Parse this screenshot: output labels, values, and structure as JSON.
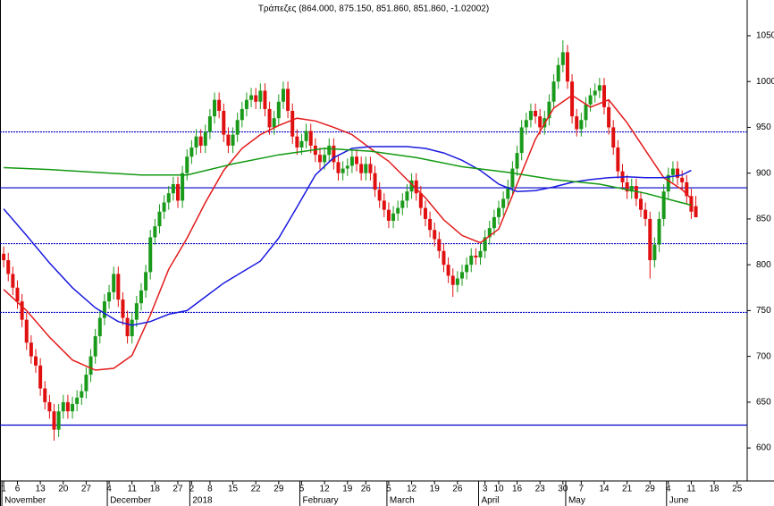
{
  "chart_data": {
    "type": "candlestick",
    "title": "Τράπεζες (864.000, 875.150, 851.860, 851.860, -1.02002)",
    "xlim": [
      -0.8,
      162.2
    ],
    "ylim": [
      564,
      1089
    ],
    "yticks": [
      600,
      650,
      700,
      750,
      800,
      850,
      900,
      950,
      1000,
      1050
    ],
    "xticks": [
      {
        "value": 0,
        "label": "1"
      },
      {
        "value": 3,
        "label": "6"
      },
      {
        "value": 8,
        "label": "13"
      },
      {
        "value": 13,
        "label": "20"
      },
      {
        "value": 18,
        "label": "27"
      },
      {
        "value": 23,
        "label": "4"
      },
      {
        "value": 28,
        "label": "11"
      },
      {
        "value": 33,
        "label": "18"
      },
      {
        "value": 38,
        "label": "27"
      },
      {
        "value": 41,
        "label": "2"
      },
      {
        "value": 45,
        "label": "8"
      },
      {
        "value": 50,
        "label": "15"
      },
      {
        "value": 55,
        "label": "22"
      },
      {
        "value": 60,
        "label": "29"
      },
      {
        "value": 65,
        "label": "5"
      },
      {
        "value": 70,
        "label": "12"
      },
      {
        "value": 75,
        "label": "19"
      },
      {
        "value": 79,
        "label": "26"
      },
      {
        "value": 84,
        "label": "5"
      },
      {
        "value": 89,
        "label": "12"
      },
      {
        "value": 94,
        "label": "19"
      },
      {
        "value": 99,
        "label": "26"
      },
      {
        "value": 105,
        "label": "3"
      },
      {
        "value": 108,
        "label": "10"
      },
      {
        "value": 112,
        "label": "16"
      },
      {
        "value": 117,
        "label": "23"
      },
      {
        "value": 122,
        "label": "30"
      },
      {
        "value": 126,
        "label": "7"
      },
      {
        "value": 131,
        "label": "14"
      },
      {
        "value": 136,
        "label": "21"
      },
      {
        "value": 141,
        "label": "29"
      },
      {
        "value": 145,
        "label": "4"
      },
      {
        "value": 150,
        "label": "11"
      },
      {
        "value": 155,
        "label": "18"
      },
      {
        "value": 160,
        "label": "25"
      }
    ],
    "month_ticks": [
      {
        "value": 0,
        "label": "November"
      },
      {
        "value": 23,
        "label": "December"
      },
      {
        "value": 41,
        "label": "2018"
      },
      {
        "value": 65,
        "label": "February"
      },
      {
        "value": 84,
        "label": "March"
      },
      {
        "value": 104,
        "label": "April"
      },
      {
        "value": 123,
        "label": "May"
      },
      {
        "value": 145,
        "label": "June"
      }
    ],
    "up_color": "#1a9a1a",
    "down_color": "#e01010",
    "open": [
      812,
      805,
      790,
      775,
      760,
      740,
      715,
      700,
      690,
      665,
      650,
      640,
      620,
      640,
      650,
      640,
      648,
      655,
      662,
      680,
      700,
      722,
      742,
      760,
      770,
      790,
      762,
      742,
      722,
      740,
      758,
      772,
      792,
      830,
      842,
      858,
      868,
      878,
      888,
      870,
      900,
      918,
      928,
      940,
      930,
      945,
      962,
      980,
      968,
      942,
      930,
      942,
      958,
      970,
      980,
      985,
      978,
      990,
      970,
      950,
      960,
      978,
      992,
      968,
      940,
      928,
      935,
      946,
      930,
      920,
      912,
      920,
      930,
      912,
      900,
      905,
      908,
      918,
      910,
      900,
      910,
      900,
      882,
      870,
      860,
      848,
      856,
      862,
      870,
      880,
      892,
      878,
      862,
      850,
      838,
      828,
      815,
      800,
      788,
      778,
      785,
      792,
      800,
      810,
      808,
      815,
      830,
      840,
      852,
      862,
      872,
      885,
      905,
      922,
      950,
      958,
      968,
      962,
      950,
      960,
      978,
      1000,
      1018,
      1032,
      1000,
      962,
      948,
      958,
      975,
      985,
      990,
      996,
      972,
      950,
      928,
      902,
      890,
      880,
      886,
      872,
      860,
      850,
      805,
      822,
      850,
      880,
      898,
      905,
      895,
      890,
      875,
      864
    ],
    "high": [
      820,
      813,
      798,
      783,
      768,
      748,
      723,
      708,
      698,
      673,
      658,
      648,
      648,
      658,
      658,
      656,
      663,
      670,
      688,
      708,
      730,
      750,
      768,
      778,
      798,
      798,
      770,
      750,
      748,
      766,
      780,
      800,
      838,
      850,
      866,
      876,
      886,
      896,
      896,
      908,
      926,
      936,
      948,
      948,
      953,
      970,
      988,
      988,
      976,
      950,
      950,
      966,
      978,
      988,
      993,
      993,
      998,
      998,
      978,
      968,
      986,
      1000,
      1000,
      976,
      948,
      943,
      954,
      954,
      938,
      928,
      928,
      938,
      938,
      920,
      913,
      916,
      926,
      926,
      918,
      918,
      918,
      908,
      890,
      878,
      868,
      864,
      870,
      878,
      888,
      900,
      900,
      886,
      870,
      858,
      846,
      836,
      823,
      808,
      796,
      793,
      800,
      808,
      818,
      818,
      823,
      838,
      848,
      860,
      870,
      880,
      893,
      913,
      930,
      958,
      966,
      976,
      976,
      970,
      968,
      986,
      1008,
      1026,
      1045,
      1040,
      1008,
      970,
      966,
      983,
      993,
      998,
      1004,
      1004,
      980,
      958,
      936,
      910,
      898,
      894,
      894,
      880,
      868,
      858,
      830,
      858,
      888,
      906,
      913,
      913,
      903,
      898,
      883,
      875.15
    ],
    "low": [
      797,
      782,
      767,
      752,
      732,
      707,
      692,
      682,
      657,
      642,
      632,
      608,
      612,
      632,
      632,
      632,
      640,
      647,
      654,
      672,
      692,
      714,
      734,
      752,
      762,
      754,
      734,
      714,
      714,
      732,
      750,
      764,
      784,
      822,
      834,
      850,
      860,
      870,
      862,
      862,
      892,
      910,
      920,
      922,
      922,
      937,
      954,
      960,
      934,
      922,
      922,
      934,
      950,
      962,
      972,
      970,
      970,
      962,
      942,
      942,
      952,
      970,
      960,
      932,
      920,
      920,
      927,
      922,
      912,
      904,
      904,
      912,
      904,
      892,
      892,
      897,
      900,
      902,
      892,
      892,
      892,
      874,
      862,
      852,
      840,
      840,
      848,
      854,
      862,
      872,
      870,
      854,
      842,
      830,
      820,
      807,
      792,
      780,
      765,
      770,
      777,
      784,
      792,
      800,
      800,
      807,
      822,
      832,
      844,
      854,
      864,
      877,
      897,
      914,
      942,
      950,
      954,
      942,
      942,
      952,
      970,
      992,
      1010,
      992,
      954,
      940,
      940,
      950,
      967,
      977,
      982,
      964,
      942,
      920,
      894,
      882,
      872,
      872,
      864,
      852,
      842,
      785,
      797,
      814,
      842,
      872,
      890,
      887,
      882,
      867,
      850,
      851.86
    ],
    "close": [
      805,
      790,
      775,
      760,
      740,
      715,
      700,
      690,
      665,
      650,
      640,
      620,
      640,
      650,
      640,
      648,
      655,
      662,
      680,
      700,
      722,
      742,
      760,
      770,
      790,
      762,
      742,
      722,
      740,
      758,
      772,
      792,
      830,
      842,
      858,
      868,
      878,
      888,
      870,
      900,
      918,
      928,
      940,
      930,
      945,
      962,
      980,
      968,
      942,
      930,
      942,
      958,
      970,
      980,
      985,
      978,
      990,
      970,
      950,
      960,
      978,
      992,
      968,
      940,
      928,
      935,
      946,
      930,
      920,
      912,
      920,
      930,
      912,
      900,
      905,
      908,
      918,
      910,
      900,
      910,
      900,
      882,
      870,
      860,
      848,
      856,
      862,
      870,
      880,
      892,
      878,
      862,
      850,
      838,
      828,
      815,
      800,
      788,
      778,
      785,
      792,
      800,
      810,
      808,
      815,
      830,
      840,
      852,
      862,
      872,
      885,
      905,
      922,
      950,
      958,
      968,
      962,
      950,
      960,
      978,
      1000,
      1018,
      1032,
      1000,
      962,
      948,
      958,
      975,
      985,
      990,
      996,
      972,
      950,
      928,
      902,
      890,
      880,
      886,
      872,
      860,
      850,
      805,
      822,
      850,
      880,
      898,
      905,
      895,
      890,
      875,
      858,
      851.86
    ],
    "lines": [
      {
        "color": "#e41a1a",
        "x": [
          0,
          5,
          10,
          15,
          20,
          24,
          28,
          32,
          36,
          40,
          44,
          48,
          52,
          56,
          60,
          64,
          68,
          72,
          76,
          80,
          84,
          88,
          92,
          96,
          100,
          104,
          108,
          112,
          116,
          120,
          124,
          128,
          132,
          136,
          140,
          144,
          148,
          150
        ],
        "values": [
          773,
          750,
          721,
          696,
          685,
          687,
          701,
          745,
          795,
          829,
          868,
          903,
          927,
          942,
          952,
          960,
          957,
          950,
          942,
          927,
          913,
          893,
          873,
          849,
          832,
          824,
          839,
          888,
          937,
          971,
          985,
          972,
          980,
          955,
          925,
          895,
          882,
          872
        ]
      },
      {
        "color": "#1a1ae0",
        "x": [
          0,
          5,
          10,
          15,
          20,
          25,
          28,
          32,
          36,
          40,
          44,
          48,
          52,
          56,
          60,
          64,
          68,
          72,
          76,
          80,
          84,
          88,
          92,
          96,
          100,
          104,
          108,
          112,
          116,
          120,
          124,
          128,
          132,
          136,
          140,
          144,
          148,
          150
        ],
        "values": [
          861,
          832,
          802,
          775,
          753,
          738,
          734,
          738,
          746,
          750,
          765,
          780,
          792,
          804,
          829,
          863,
          898,
          917,
          927,
          929,
          929,
          929,
          927,
          922,
          914,
          903,
          888,
          880,
          881,
          885,
          890,
          893,
          895,
          896,
          895,
          895,
          898,
          903
        ]
      },
      {
        "color": "#119911",
        "x": [
          0,
          10,
          20,
          30,
          40,
          50,
          60,
          70,
          80,
          90,
          100,
          110,
          120,
          130,
          140,
          150
        ],
        "values": [
          906,
          904,
          901,
          898,
          898,
          910,
          920,
          927,
          924,
          917,
          907,
          901,
          893,
          888,
          878,
          865
        ]
      }
    ],
    "hlines": [
      945,
      884,
      823,
      748,
      625
    ],
    "hline_dashed": [
      true,
      false,
      true,
      true,
      false
    ],
    "hline_color": "#0000c8"
  }
}
